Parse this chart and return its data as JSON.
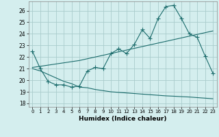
{
  "title": "",
  "xlabel": "Humidex (Indice chaleur)",
  "bg_color": "#d4eeee",
  "grid_color": "#aacccc",
  "line_color": "#1a6b6b",
  "xlim": [
    -0.5,
    23.5
  ],
  "ylim": [
    17.7,
    26.8
  ],
  "xticks": [
    0,
    1,
    2,
    3,
    4,
    5,
    6,
    7,
    8,
    9,
    10,
    11,
    12,
    13,
    14,
    15,
    16,
    17,
    18,
    19,
    20,
    21,
    22,
    23
  ],
  "yticks": [
    18,
    19,
    20,
    21,
    22,
    23,
    24,
    25,
    26
  ],
  "line1_x": [
    0,
    1,
    2,
    3,
    4,
    5,
    6,
    7,
    8,
    9,
    10,
    11,
    12,
    13,
    14,
    15,
    16,
    17,
    18,
    19,
    20,
    21,
    22,
    23
  ],
  "line1_y": [
    22.5,
    21.0,
    19.9,
    19.6,
    19.6,
    19.4,
    19.5,
    20.8,
    21.1,
    21.0,
    22.3,
    22.7,
    22.3,
    23.1,
    24.35,
    23.6,
    25.3,
    26.35,
    26.45,
    25.3,
    24.0,
    23.7,
    22.1,
    20.6
  ],
  "line2_x": [
    0,
    1,
    2,
    3,
    4,
    5,
    6,
    7,
    8,
    9,
    10,
    11,
    12,
    13,
    14,
    15,
    16,
    17,
    18,
    19,
    20,
    21,
    22,
    23
  ],
  "line2_y": [
    21.1,
    21.2,
    21.3,
    21.4,
    21.5,
    21.6,
    21.7,
    21.85,
    22.0,
    22.15,
    22.3,
    22.45,
    22.6,
    22.75,
    22.9,
    23.05,
    23.2,
    23.35,
    23.5,
    23.65,
    23.8,
    23.95,
    24.1,
    24.25
  ],
  "line3_x": [
    0,
    1,
    2,
    3,
    4,
    5,
    6,
    7,
    8,
    9,
    10,
    11,
    12,
    13,
    14,
    15,
    16,
    17,
    18,
    19,
    20,
    21,
    22,
    23
  ],
  "line3_y": [
    21.0,
    20.8,
    20.5,
    20.2,
    19.9,
    19.7,
    19.4,
    19.35,
    19.2,
    19.1,
    19.0,
    18.95,
    18.9,
    18.85,
    18.8,
    18.75,
    18.7,
    18.65,
    18.62,
    18.58,
    18.55,
    18.5,
    18.45,
    18.4
  ]
}
